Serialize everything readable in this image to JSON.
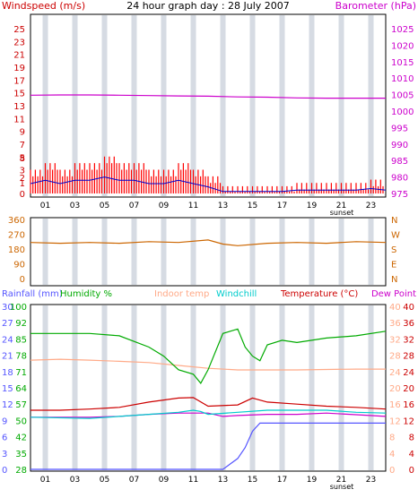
{
  "chart_data": [
    {
      "type": "line",
      "title": "24 hour graph day : 28 July 2007",
      "left_axis_label": "Windspeed (m/s)",
      "right_axis_label": "Barometer (hPa)",
      "left_ticks": [
        "25",
        "23",
        "21",
        "19",
        "17",
        "15",
        "13",
        "11",
        "9",
        "7",
        "5",
        "3",
        "1"
      ],
      "right_ticks": [
        "1025",
        "1020",
        "1015",
        "1010",
        "1005",
        "1000",
        "995",
        "990",
        "985",
        "980",
        "975"
      ],
      "extra_left_ticks": [
        "0",
        "2",
        "8"
      ],
      "x_ticks": [
        "01",
        "03",
        "05",
        "07",
        "09",
        "11",
        "13",
        "15",
        "17",
        "19",
        "21",
        "23"
      ],
      "x_note": "sunset",
      "ylim_left": [
        0,
        25
      ],
      "ylim_right": [
        975,
        1025
      ],
      "colors": {
        "windspeed": "#ff0000",
        "gust": "#0000cc",
        "barometer": "#cc00cc"
      },
      "series": [
        {
          "name": "Windspeed (m/s)",
          "x": [
            0,
            1,
            2,
            3,
            4,
            5,
            6,
            7,
            8,
            9,
            10,
            11,
            12,
            13,
            14,
            15,
            16,
            17,
            18,
            19,
            20,
            21,
            22,
            23,
            24
          ],
          "values": [
            3,
            4,
            3,
            4,
            4,
            5,
            4,
            4,
            3,
            3,
            4,
            3,
            2,
            0.5,
            0.5,
            0.5,
            0.5,
            0.5,
            1,
            1,
            1,
            1,
            1,
            1.5,
            1
          ]
        },
        {
          "name": "Barometer (hPa)",
          "x": [
            0,
            2,
            4,
            6,
            8,
            10,
            12,
            14,
            16,
            18,
            20,
            22,
            24
          ],
          "values": [
            1004.8,
            1004.9,
            1004.9,
            1004.8,
            1004.7,
            1004.6,
            1004.5,
            1004.3,
            1004.2,
            1004.0,
            1003.9,
            1003.9,
            1003.9
          ]
        }
      ]
    },
    {
      "type": "line",
      "left_ticks": [
        "360",
        "270",
        "180",
        "90",
        "0"
      ],
      "right_ticks": [
        "N",
        "W",
        "S",
        "E",
        "N"
      ],
      "ylim": [
        0,
        360
      ],
      "colors": {
        "direction": "#cc6600"
      },
      "series": [
        {
          "name": "Wind direction",
          "x": [
            0,
            2,
            4,
            6,
            8,
            10,
            12,
            13,
            14,
            16,
            18,
            20,
            22,
            24
          ],
          "values": [
            220,
            215,
            220,
            215,
            225,
            220,
            235,
            210,
            200,
            215,
            220,
            215,
            225,
            220
          ]
        }
      ]
    },
    {
      "type": "line",
      "labels": {
        "rainfall": "Rainfall (mm)",
        "humidity": "Humidity %",
        "indoor": "Indoor temp",
        "windchill": "Windchill",
        "temperature": "Temperature (°C)",
        "dewpoint": "Dew Point"
      },
      "rain_ticks": [
        "30",
        "27",
        "24",
        "21",
        "18",
        "15",
        "12",
        "9",
        "6",
        "3",
        "0"
      ],
      "humidity_ticks": [
        "100",
        "92",
        "85",
        "78",
        "71",
        "64",
        "57",
        "50",
        "42",
        "35",
        "28"
      ],
      "temp_ticks": [
        "40",
        "36",
        "32",
        "28",
        "24",
        "20",
        "16",
        "12",
        "8",
        "4",
        "0"
      ],
      "x_ticks": [
        "01",
        "03",
        "05",
        "07",
        "09",
        "11",
        "13",
        "15",
        "17",
        "19",
        "21",
        "23"
      ],
      "x_note": "sunset",
      "ylim_temp": [
        0,
        40
      ],
      "ylim_rain": [
        0,
        30
      ],
      "colors": {
        "rainfall": "#5555ff",
        "humidity": "#00aa00",
        "indoor": "#ffaa88",
        "windchill": "#00cccc",
        "temperature": "#cc0000",
        "dewpoint": "#cc00cc"
      },
      "series": [
        {
          "name": "Temperature (°C)",
          "x": [
            0,
            2,
            4,
            6,
            8,
            10,
            11,
            12,
            14,
            15,
            16,
            18,
            20,
            22,
            24
          ],
          "values": [
            14.5,
            14.5,
            14.8,
            15.2,
            16.5,
            17.5,
            17.6,
            15.5,
            15.8,
            17.5,
            16.5,
            16,
            15.5,
            15.2,
            14.8
          ]
        },
        {
          "name": "Dew Point",
          "x": [
            0,
            2,
            4,
            6,
            8,
            10,
            12,
            13,
            14,
            16,
            18,
            20,
            22,
            24
          ],
          "values": [
            12.8,
            12.8,
            12.8,
            13,
            13.5,
            13.8,
            13.8,
            13,
            13.2,
            13.5,
            13.5,
            13.8,
            13.4,
            13
          ]
        },
        {
          "name": "Indoor temp",
          "x": [
            0,
            2,
            4,
            6,
            8,
            10,
            12,
            14,
            16,
            18,
            20,
            22,
            24
          ],
          "values": [
            26.8,
            27,
            26.8,
            26.5,
            26.2,
            25.5,
            24.8,
            24.4,
            24.4,
            24.4,
            24.5,
            24.6,
            24.6
          ]
        },
        {
          "name": "Humidity %",
          "x": [
            0,
            2,
            4,
            6,
            8,
            9,
            10,
            11,
            11.5,
            12,
            13,
            14,
            14.5,
            15,
            15.5,
            16,
            17,
            18,
            20,
            22,
            24
          ],
          "values": [
            88,
            88,
            88,
            87,
            82,
            78,
            72,
            70,
            66,
            72,
            88,
            90,
            82,
            78,
            76,
            83,
            85,
            84,
            86,
            87,
            89
          ]
        },
        {
          "name": "Rainfall (mm)",
          "x": [
            0,
            13,
            13.5,
            14,
            14.5,
            15,
            15.5,
            24
          ],
          "values": [
            0,
            0,
            1,
            2,
            4,
            7,
            8.5,
            8.5
          ]
        },
        {
          "name": "Windchill",
          "x": [
            0,
            4,
            6,
            8,
            10,
            11,
            11.5,
            12,
            14,
            16,
            18,
            20,
            22,
            24
          ],
          "values": [
            12.8,
            12.5,
            13,
            13.5,
            14,
            14.5,
            14.2,
            13.5,
            14,
            14.5,
            14.5,
            14.5,
            14,
            13.8
          ]
        }
      ]
    }
  ]
}
